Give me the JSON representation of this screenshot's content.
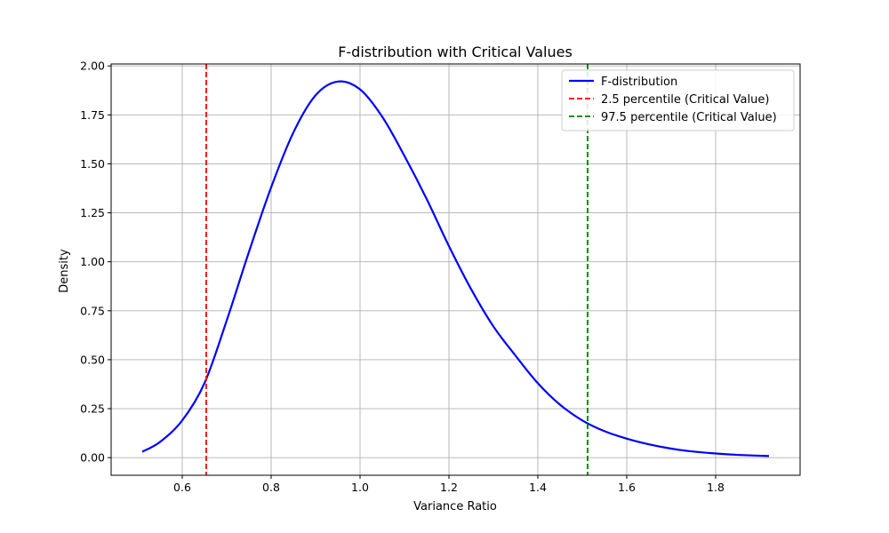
{
  "chart_data": {
    "type": "line",
    "title": "F-distribution with Critical Values",
    "xlabel": "Variance Ratio",
    "ylabel": "Density",
    "xlim": [
      0.44,
      1.99
    ],
    "ylim": [
      -0.09,
      2.01
    ],
    "xticks": [
      0.6,
      0.8,
      1.0,
      1.2,
      1.4,
      1.6,
      1.8
    ],
    "xtick_labels": [
      "0.6",
      "0.8",
      "1.0",
      "1.2",
      "1.4",
      "1.6",
      "1.8"
    ],
    "yticks": [
      0.0,
      0.25,
      0.5,
      0.75,
      1.0,
      1.25,
      1.5,
      1.75,
      2.0
    ],
    "ytick_labels": [
      "0.00",
      "0.25",
      "0.50",
      "0.75",
      "1.00",
      "1.25",
      "1.50",
      "1.75",
      "2.00"
    ],
    "grid": true,
    "legend_position": "top-right",
    "series": [
      {
        "name": "F-distribution",
        "color": "#0000ff",
        "style": "solid",
        "x": [
          0.51,
          0.55,
          0.6,
          0.65,
          0.7,
          0.75,
          0.8,
          0.85,
          0.9,
          0.95,
          1.0,
          1.05,
          1.1,
          1.15,
          1.2,
          1.25,
          1.3,
          1.35,
          1.4,
          1.45,
          1.5,
          1.55,
          1.6,
          1.65,
          1.7,
          1.75,
          1.8,
          1.85,
          1.92
        ],
        "y": [
          0.03,
          0.08,
          0.19,
          0.38,
          0.7,
          1.05,
          1.38,
          1.66,
          1.85,
          1.92,
          1.88,
          1.74,
          1.54,
          1.32,
          1.08,
          0.86,
          0.67,
          0.52,
          0.38,
          0.27,
          0.19,
          0.135,
          0.097,
          0.068,
          0.046,
          0.031,
          0.021,
          0.014,
          0.008
        ]
      }
    ],
    "vlines": [
      {
        "name": "2.5 percentile (Critical Value)",
        "x": 0.654,
        "color": "#ff0000",
        "style": "dashed"
      },
      {
        "name": "97.5 percentile (Critical Value)",
        "x": 1.512,
        "color": "#008000",
        "style": "dashed"
      }
    ]
  }
}
